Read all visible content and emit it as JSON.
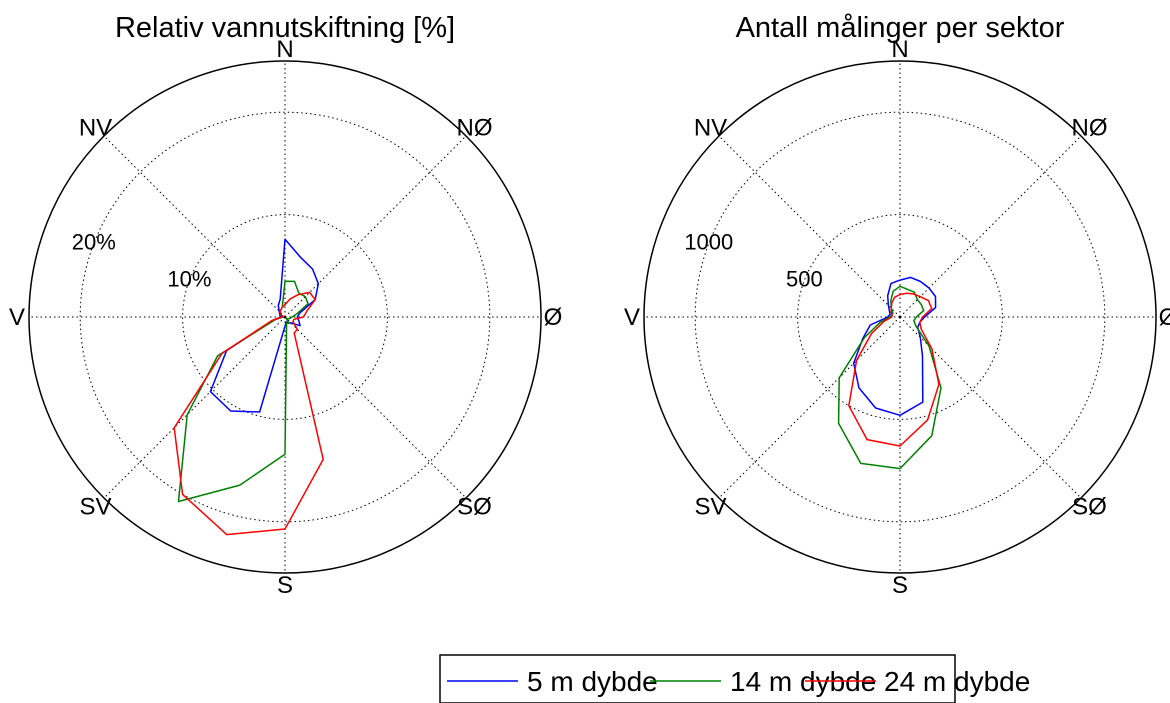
{
  "chart_data": [
    {
      "type": "polar-line",
      "title": "Relativ vannutskiftning [%]",
      "directions": [
        "N",
        "NØ",
        "Ø",
        "SØ",
        "S",
        "SV",
        "V",
        "NV"
      ],
      "radial_ticks": [
        "10%",
        "20%"
      ],
      "radial_tick_values": [
        10,
        20
      ],
      "rlim": [
        0,
        25
      ],
      "sector_angles_deg": [
        0,
        15,
        30,
        45,
        60,
        75,
        90,
        105,
        120,
        135,
        150,
        165,
        180,
        195,
        210,
        225,
        240,
        255,
        270,
        285,
        300,
        315,
        330,
        345
      ],
      "series": [
        {
          "name": "5 m dybde",
          "color": "#0000ff",
          "values": [
            7.6,
            6.0,
            5.4,
            4.6,
            3.4,
            1.5,
            1.2,
            1.4,
            1.7,
            0.8,
            0.7,
            0.5,
            0.9,
            9.6,
            10.6,
            10.3,
            6.6,
            1.2,
            0.4,
            0.5,
            0.6,
            0.8,
            1.3,
            1.8
          ]
        },
        {
          "name": "14 m dybde",
          "color": "#008000",
          "values": [
            3.5,
            3.6,
            2.7,
            2.8,
            2.6,
            1.2,
            0.7,
            0.5,
            0.4,
            0.2,
            0.7,
            0.6,
            13.4,
            17.0,
            20.8,
            13.5,
            7.6,
            1.0,
            0.2,
            0.3,
            0.5,
            0.7,
            0.8,
            1.0
          ]
        },
        {
          "name": "24 m dybde",
          "color": "#ff0000",
          "values": [
            1.2,
            1.8,
            2.5,
            3.4,
            3.4,
            2.2,
            1.8,
            0.9,
            0.9,
            1.7,
            1.8,
            14.4,
            20.7,
            22.0,
            20.0,
            15.3,
            7.1,
            1.3,
            0.3,
            0.2,
            0.4,
            0.7,
            0.8,
            1.0
          ]
        }
      ]
    },
    {
      "type": "polar-line",
      "title": "Antall målinger per sektor",
      "directions": [
        "N",
        "NØ",
        "Ø",
        "SØ",
        "S",
        "SV",
        "V",
        "NV"
      ],
      "radial_ticks": [
        "500",
        "1000"
      ],
      "radial_tick_values": [
        500,
        1000
      ],
      "rlim": [
        0,
        1250
      ],
      "sector_angles_deg": [
        0,
        15,
        30,
        45,
        60,
        75,
        90,
        105,
        120,
        135,
        150,
        165,
        180,
        195,
        210,
        225,
        240,
        255,
        270,
        285,
        300,
        315,
        330,
        345
      ],
      "series": [
        {
          "name": "5 m dybde",
          "color": "#0000ff",
          "values": [
            180,
            200,
            200,
            200,
            200,
            180,
            120,
            100,
            100,
            140,
            220,
            430,
            480,
            460,
            400,
            320,
            210,
            150,
            60,
            50,
            60,
            80,
            120,
            170
          ]
        },
        {
          "name": "14 m dybde",
          "color": "#008000",
          "values": [
            150,
            140,
            140,
            120,
            120,
            120,
            80,
            70,
            90,
            200,
            400,
            600,
            740,
            740,
            600,
            420,
            200,
            100,
            50,
            40,
            40,
            60,
            90,
            130
          ]
        },
        {
          "name": "24 m dybde",
          "color": "#ff0000",
          "values": [
            110,
            120,
            130,
            140,
            160,
            160,
            110,
            100,
            120,
            220,
            380,
            520,
            630,
            620,
            500,
            300,
            160,
            80,
            40,
            40,
            50,
            60,
            80,
            100
          ]
        }
      ]
    }
  ],
  "legend": {
    "items": [
      {
        "label": "5 m dybde",
        "color": "#0000ff"
      },
      {
        "label": "14 m dybde",
        "color": "#008000"
      },
      {
        "label": "24 m dybde",
        "color": "#ff0000"
      }
    ]
  }
}
